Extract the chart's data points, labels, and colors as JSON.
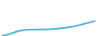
{
  "x": [
    0,
    1,
    2,
    3,
    4,
    5,
    6,
    7,
    8,
    9,
    10,
    11,
    12,
    13,
    14,
    15,
    16,
    17,
    18,
    19,
    20
  ],
  "y": [
    0.02,
    0.07,
    0.16,
    0.26,
    0.33,
    0.37,
    0.39,
    0.39,
    0.4,
    0.4,
    0.41,
    0.43,
    0.45,
    0.48,
    0.52,
    0.56,
    0.62,
    0.69,
    0.76,
    0.84,
    0.92
  ],
  "line_color": "#4aaed9",
  "linewidth": 1.5,
  "background_color": "#ffffff",
  "xlim": [
    -0.5,
    20.5
  ],
  "ylim": [
    0.0,
    2.2
  ]
}
